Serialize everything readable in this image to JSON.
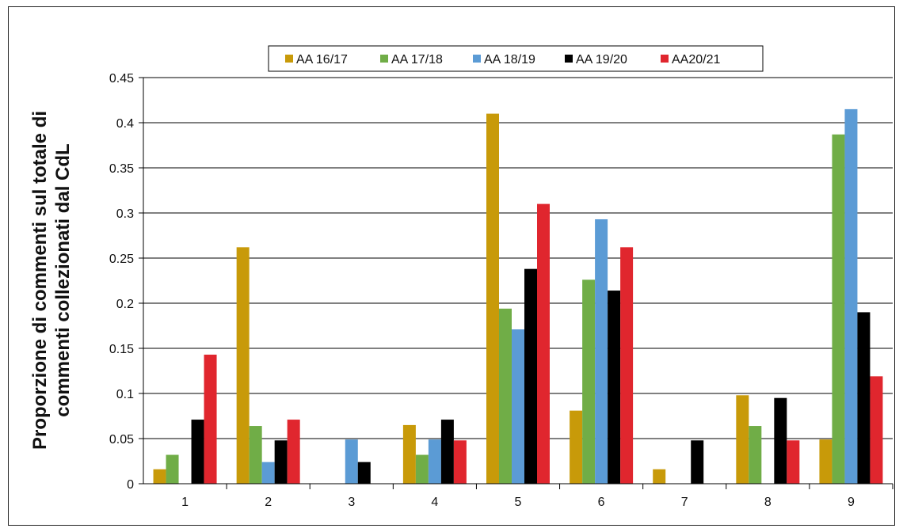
{
  "chart_data": {
    "type": "bar",
    "title": "",
    "xlabel": "",
    "ylabel_lines": [
      "Proporzione di commenti sul totale di",
      "commenti collezionati dal CdL"
    ],
    "categories": [
      "1",
      "2",
      "3",
      "4",
      "5",
      "6",
      "7",
      "8",
      "9"
    ],
    "ylim": [
      0,
      0.45
    ],
    "yticks": [
      0,
      0.05,
      0.1,
      0.15,
      0.2,
      0.25,
      0.3,
      0.35,
      0.4,
      0.45
    ],
    "ytick_labels": [
      "0",
      "0.05",
      "0.1",
      "0.15",
      "0.2",
      "0.25",
      "0.3",
      "0.35",
      "0.4",
      "0.45"
    ],
    "grid": "horizontal",
    "legend_position": "top",
    "series": [
      {
        "name": "AA 16/17",
        "color": "#C89A09",
        "values": [
          0.016,
          0.262,
          0,
          0.065,
          0.41,
          0.081,
          0.016,
          0.098,
          0.049
        ]
      },
      {
        "name": "AA 17/18",
        "color": "#70AD47",
        "values": [
          0.032,
          0.064,
          0,
          0.032,
          0.194,
          0.226,
          0,
          0.064,
          0.387
        ]
      },
      {
        "name": "AA 18/19",
        "color": "#5B9BD5",
        "values": [
          0,
          0.024,
          0.049,
          0.049,
          0.171,
          0.293,
          0,
          0,
          0.415
        ]
      },
      {
        "name": "AA 19/20",
        "color": "#000000",
        "values": [
          0.071,
          0.048,
          0.024,
          0.071,
          0.238,
          0.214,
          0.048,
          0.095,
          0.19
        ]
      },
      {
        "name": "AA20/21",
        "color": "#E0262E",
        "values": [
          0.143,
          0.071,
          0,
          0.048,
          0.31,
          0.262,
          0,
          0.048,
          0.119
        ]
      }
    ]
  }
}
